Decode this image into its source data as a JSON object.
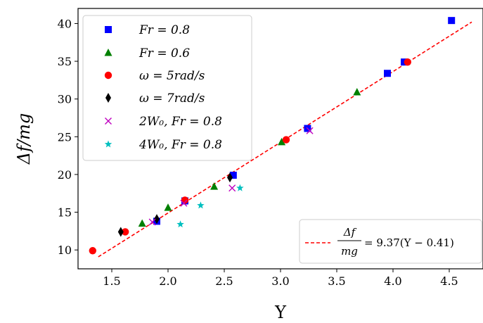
{
  "chart_data": {
    "type": "scatter",
    "xlabel": "Υ",
    "ylabel": "Δf/mg",
    "xlim": [
      1.2,
      4.8
    ],
    "ylim": [
      7.5,
      42
    ],
    "xticks": [
      1.5,
      2.0,
      2.5,
      3.0,
      3.5,
      4.0,
      4.5
    ],
    "xtick_labels": [
      "1.5",
      "2.0",
      "2.5",
      "3.0",
      "3.5",
      "4.0",
      "4.5"
    ],
    "yticks": [
      10,
      15,
      20,
      25,
      30,
      35,
      40
    ],
    "ytick_labels": [
      "10",
      "15",
      "20",
      "25",
      "30",
      "35",
      "40"
    ],
    "grid": false,
    "legend_position": "top-left",
    "series": [
      {
        "name": "Fr = 0.8",
        "marker": "square",
        "color": "#0000ff",
        "points": [
          [
            1.9,
            13.8
          ],
          [
            2.15,
            16.5
          ],
          [
            2.58,
            19.9
          ],
          [
            3.24,
            26.1
          ],
          [
            3.95,
            33.4
          ],
          [
            4.1,
            34.9
          ],
          [
            4.52,
            40.4
          ]
        ]
      },
      {
        "name": "Fr = 0.6",
        "marker": "triangle",
        "color": "#008000",
        "points": [
          [
            1.77,
            13.5
          ],
          [
            2.0,
            15.6
          ],
          [
            2.41,
            18.4
          ],
          [
            3.01,
            24.3
          ],
          [
            3.68,
            30.9
          ]
        ]
      },
      {
        "name": "ω = 5rad/s",
        "marker": "circle",
        "color": "#ff0000",
        "points": [
          [
            1.33,
            9.9
          ],
          [
            1.62,
            12.4
          ],
          [
            2.15,
            16.6
          ],
          [
            3.05,
            24.6
          ],
          [
            4.13,
            34.9
          ]
        ]
      },
      {
        "name": "ω = 7rad/s",
        "marker": "diamond",
        "color": "#000000",
        "points": [
          [
            1.58,
            12.4
          ],
          [
            1.9,
            14.1
          ],
          [
            2.55,
            19.6
          ]
        ]
      },
      {
        "name": "2W₀, Fr = 0.8",
        "marker": "x",
        "color": "#bf00bf",
        "points": [
          [
            1.86,
            13.7
          ],
          [
            2.14,
            16.2
          ],
          [
            2.57,
            18.2
          ],
          [
            3.26,
            25.8
          ]
        ]
      },
      {
        "name": "4W₀, Fr = 0.8",
        "marker": "star",
        "color": "#00bfbf",
        "points": [
          [
            2.11,
            13.4
          ],
          [
            2.29,
            15.9
          ],
          [
            2.64,
            18.2
          ]
        ]
      }
    ],
    "fit_line": {
      "label_num": "Δf",
      "label_den": "mg",
      "label_rhs": "= 9.37(Υ − 0.41)",
      "slope": 9.37,
      "offset": 0.41,
      "x_range": [
        1.38,
        4.7
      ],
      "color": "#ff0000",
      "style": "dashed"
    }
  }
}
